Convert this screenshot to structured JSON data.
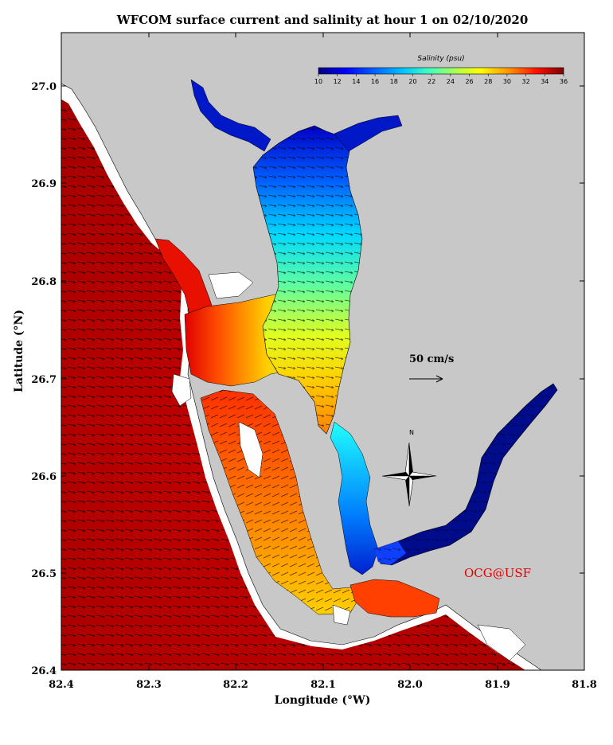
{
  "title": "WFCOM surface current and salinity at hour 1 on 02/10/2020",
  "x_axis": {
    "label": "Longitude (°W)",
    "ticks": [
      "82.4",
      "82.3",
      "82.2",
      "82.1",
      "82.0",
      "81.9",
      "81.8"
    ]
  },
  "y_axis": {
    "label": "Latitude (°N)",
    "ticks": [
      "27.0",
      "26.9",
      "26.8",
      "26.7",
      "26.6",
      "26.5",
      "26.4"
    ]
  },
  "colorbar": {
    "title": "Salinity (psu)",
    "ticks": [
      "10",
      "12",
      "14",
      "16",
      "18",
      "20",
      "22",
      "24",
      "26",
      "28",
      "30",
      "32",
      "34",
      "36"
    ],
    "colors": [
      "#00007f",
      "#0000ff",
      "#0080ff",
      "#00ffff",
      "#80ff80",
      "#ffff00",
      "#ff8000",
      "#ff0000",
      "#7f0000"
    ]
  },
  "reference_vector": {
    "label": "50 cm/s"
  },
  "compass": {
    "label": "N"
  },
  "credit": "OCG@USF",
  "colors": {
    "land": "#c8c8c8",
    "background": "#ffffff",
    "gulf_water": "#b40000",
    "credit": "#e00000"
  }
}
